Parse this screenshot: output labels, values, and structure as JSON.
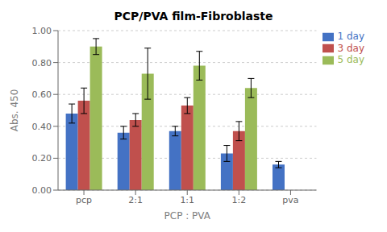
{
  "chart_data": {
    "type": "bar",
    "title": "PCP/PVA film-Fibroblaste",
    "xlabel": "PCP : PVA",
    "ylabel": "Abs. 450",
    "categories": [
      "pcp",
      "2:1",
      "1:1",
      "1:2",
      "pva"
    ],
    "series": [
      {
        "name": "1 day",
        "color": "#4472C4",
        "values": [
          0.48,
          0.36,
          0.37,
          0.23,
          0.16
        ],
        "errors": [
          0.06,
          0.04,
          0.03,
          0.05,
          0.02
        ]
      },
      {
        "name": "3 day",
        "color": "#C0504D",
        "values": [
          0.56,
          0.44,
          0.53,
          0.37,
          null
        ],
        "errors": [
          0.08,
          0.04,
          0.05,
          0.06,
          null
        ]
      },
      {
        "name": "5 day",
        "color": "#9BBB59",
        "values": [
          0.9,
          0.73,
          0.78,
          0.64,
          null
        ],
        "errors": [
          0.05,
          0.16,
          0.09,
          0.06,
          null
        ]
      }
    ],
    "ylim": [
      0.0,
      1.0
    ],
    "yticks": [
      {
        "value": 0.0,
        "label": "0.00"
      },
      {
        "value": 0.2,
        "label": "0.20"
      },
      {
        "value": 0.4,
        "label": "0.40"
      },
      {
        "value": 0.6,
        "label": "0.60"
      },
      {
        "value": 0.8,
        "label": "0.80"
      },
      {
        "value": 1.0,
        "label": "1.00"
      }
    ],
    "grid": true,
    "legend": "upper right"
  }
}
